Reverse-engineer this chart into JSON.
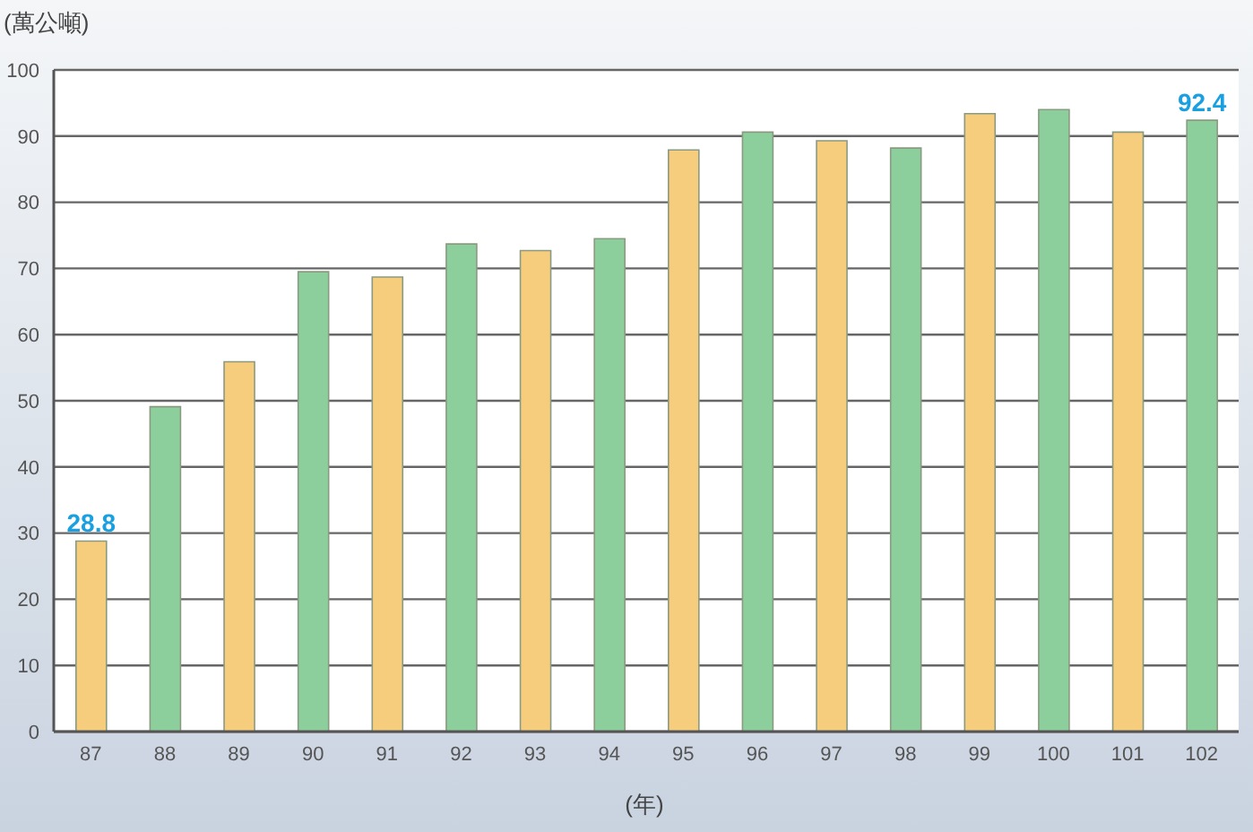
{
  "chart_data": {
    "type": "bar",
    "ylabel": "(萬公噸)",
    "xlabel": "(年)",
    "categories": [
      "87",
      "88",
      "89",
      "90",
      "91",
      "92",
      "93",
      "94",
      "95",
      "96",
      "97",
      "98",
      "99",
      "100",
      "101",
      "102"
    ],
    "values": [
      28.8,
      49.1,
      55.9,
      69.5,
      68.7,
      73.7,
      72.7,
      74.5,
      87.9,
      90.6,
      89.3,
      88.2,
      93.4,
      94.0,
      90.6,
      92.4
    ],
    "colors": [
      "#f6cd7c",
      "#8ccf9c",
      "#f6cd7c",
      "#8ccf9c",
      "#f6cd7c",
      "#8ccf9c",
      "#f6cd7c",
      "#8ccf9c",
      "#f6cd7c",
      "#8ccf9c",
      "#f6cd7c",
      "#8ccf9c",
      "#f6cd7c",
      "#8ccf9c",
      "#f6cd7c",
      "#8ccf9c"
    ],
    "value_labels": [
      "28.8",
      null,
      null,
      null,
      null,
      null,
      null,
      null,
      null,
      null,
      null,
      null,
      null,
      null,
      null,
      "92.4"
    ],
    "ylim": [
      0,
      100
    ],
    "yticks": [
      0,
      10,
      20,
      30,
      40,
      50,
      60,
      70,
      80,
      90,
      100
    ],
    "grid": "y"
  }
}
